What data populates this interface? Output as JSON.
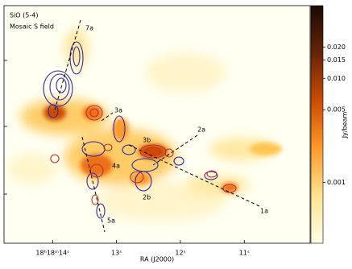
{
  "chart_data": {
    "type": "image",
    "annotations": [
      "SiO (5-4)",
      "Mosaic S field",
      "7a",
      "3a",
      "2a",
      "3b",
      "4a",
      "2b",
      "5a",
      "1a"
    ],
    "xlabel": "RA (J2000)",
    "xlim": [
      14.76,
      9.97
    ],
    "xticks": [
      {
        "value": 14,
        "label": "18ʰ18ᵐ14ˢ"
      },
      {
        "value": 13,
        "label": "13ˢ"
      },
      {
        "value": 12,
        "label": "12ˢ"
      },
      {
        "value": 11,
        "label": "11ˢ"
      }
    ],
    "colorbar": {
      "label": "Jy/beam",
      "scale": "log",
      "lim": [
        0.00026,
        0.05
      ],
      "ticks": [
        {
          "value": 0.001,
          "label": "0.001"
        },
        {
          "value": 0.005,
          "label": "0.005"
        },
        {
          "value": 0.01,
          "label": "0.010"
        },
        {
          "value": 0.015,
          "label": "0.015"
        },
        {
          "value": 0.02,
          "label": "0.020"
        }
      ]
    }
  }
}
